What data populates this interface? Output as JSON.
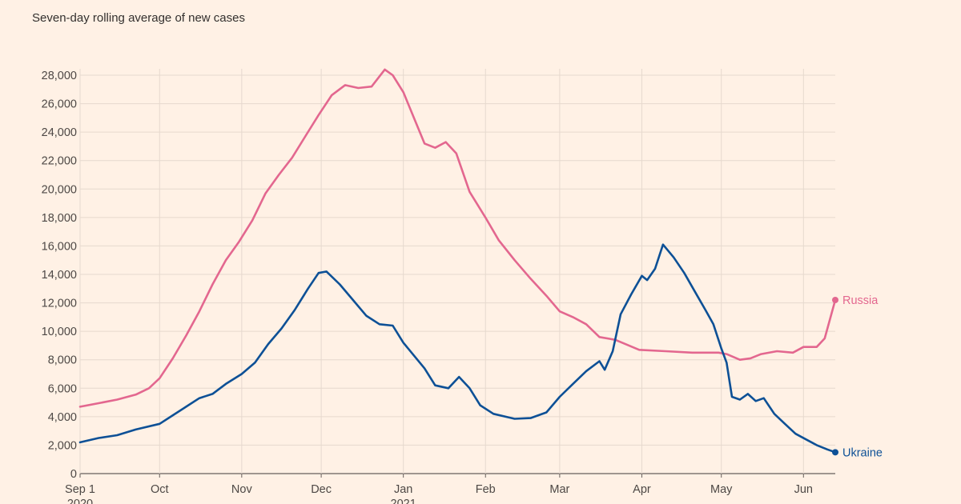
{
  "header": {
    "title": "",
    "subtitle": "Seven-day rolling average of new cases"
  },
  "colors": {
    "background": "#fff1e5",
    "grid": "#e6d9ce",
    "russia": "#e3678f",
    "ukraine": "#0d5096"
  },
  "chart_data": {
    "type": "line",
    "subtitle": "Seven-day rolling average of new cases",
    "x_axis": {
      "type": "date",
      "range": [
        "2020-09-01",
        "2021-06-13"
      ],
      "ticks": [
        {
          "date": "2020-09-01",
          "label": "Sep 1",
          "sublabel": "2020"
        },
        {
          "date": "2020-10-01",
          "label": "Oct"
        },
        {
          "date": "2020-11-01",
          "label": "Nov"
        },
        {
          "date": "2020-12-01",
          "label": "Dec"
        },
        {
          "date": "2021-01-01",
          "label": "Jan",
          "sublabel": "2021"
        },
        {
          "date": "2021-02-01",
          "label": "Feb"
        },
        {
          "date": "2021-03-01",
          "label": "Mar"
        },
        {
          "date": "2021-04-01",
          "label": "Apr"
        },
        {
          "date": "2021-05-01",
          "label": "May"
        },
        {
          "date": "2021-06-01",
          "label": "Jun"
        }
      ]
    },
    "y_axis": {
      "ylim": [
        0,
        28000
      ],
      "ticks": [
        0,
        2000,
        4000,
        6000,
        8000,
        10000,
        12000,
        14000,
        16000,
        18000,
        20000,
        22000,
        24000,
        26000,
        28000
      ],
      "tick_labels": [
        "0",
        "2,000",
        "4,000",
        "6,000",
        "8,000",
        "10,000",
        "12,000",
        "14,000",
        "16,000",
        "18,000",
        "20,000",
        "22,000",
        "24,000",
        "26,000",
        "28,000"
      ]
    },
    "grid": true,
    "series": [
      {
        "name": "Russia",
        "color": "#e3678f",
        "label_position": "end",
        "points": [
          [
            "2020-09-01",
            4700
          ],
          [
            "2020-09-08",
            4950
          ],
          [
            "2020-09-15",
            5200
          ],
          [
            "2020-09-22",
            5550
          ],
          [
            "2020-09-27",
            6000
          ],
          [
            "2020-10-01",
            6700
          ],
          [
            "2020-10-06",
            8100
          ],
          [
            "2020-10-11",
            9700
          ],
          [
            "2020-10-16",
            11400
          ],
          [
            "2020-10-21",
            13300
          ],
          [
            "2020-10-26",
            15000
          ],
          [
            "2020-10-31",
            16300
          ],
          [
            "2020-11-05",
            17800
          ],
          [
            "2020-11-10",
            19700
          ],
          [
            "2020-11-15",
            21000
          ],
          [
            "2020-11-20",
            22200
          ],
          [
            "2020-11-25",
            23700
          ],
          [
            "2020-11-30",
            25200
          ],
          [
            "2020-12-05",
            26600
          ],
          [
            "2020-12-10",
            27300
          ],
          [
            "2020-12-15",
            27100
          ],
          [
            "2020-12-20",
            27200
          ],
          [
            "2020-12-25",
            28400
          ],
          [
            "2020-12-28",
            28000
          ],
          [
            "2021-01-01",
            26800
          ],
          [
            "2021-01-05",
            25000
          ],
          [
            "2021-01-09",
            23200
          ],
          [
            "2021-01-13",
            22900
          ],
          [
            "2021-01-17",
            23300
          ],
          [
            "2021-01-21",
            22500
          ],
          [
            "2021-01-26",
            19800
          ],
          [
            "2021-02-01",
            18000
          ],
          [
            "2021-02-06",
            16400
          ],
          [
            "2021-02-12",
            15000
          ],
          [
            "2021-02-18",
            13700
          ],
          [
            "2021-02-24",
            12500
          ],
          [
            "2021-03-01",
            11400
          ],
          [
            "2021-03-06",
            11000
          ],
          [
            "2021-03-11",
            10500
          ],
          [
            "2021-03-16",
            9600
          ],
          [
            "2021-03-22",
            9400
          ],
          [
            "2021-03-31",
            8700
          ],
          [
            "2021-04-10",
            8600
          ],
          [
            "2021-04-20",
            8500
          ],
          [
            "2021-04-30",
            8500
          ],
          [
            "2021-05-03",
            8400
          ],
          [
            "2021-05-08",
            8000
          ],
          [
            "2021-05-12",
            8100
          ],
          [
            "2021-05-16",
            8400
          ],
          [
            "2021-05-22",
            8600
          ],
          [
            "2021-05-28",
            8500
          ],
          [
            "2021-06-01",
            8900
          ],
          [
            "2021-06-06",
            8900
          ],
          [
            "2021-06-09",
            9500
          ],
          [
            "2021-06-13",
            12200
          ]
        ]
      },
      {
        "name": "Ukraine",
        "color": "#0d5096",
        "label_position": "end",
        "points": [
          [
            "2020-09-01",
            2200
          ],
          [
            "2020-09-08",
            2500
          ],
          [
            "2020-09-15",
            2700
          ],
          [
            "2020-09-22",
            3100
          ],
          [
            "2020-10-01",
            3500
          ],
          [
            "2020-10-06",
            4100
          ],
          [
            "2020-10-11",
            4700
          ],
          [
            "2020-10-16",
            5300
          ],
          [
            "2020-10-21",
            5600
          ],
          [
            "2020-10-26",
            6300
          ],
          [
            "2020-11-01",
            7000
          ],
          [
            "2020-11-06",
            7800
          ],
          [
            "2020-11-11",
            9100
          ],
          [
            "2020-11-16",
            10200
          ],
          [
            "2020-11-21",
            11500
          ],
          [
            "2020-11-26",
            13000
          ],
          [
            "2020-11-30",
            14100
          ],
          [
            "2020-12-03",
            14200
          ],
          [
            "2020-12-08",
            13300
          ],
          [
            "2020-12-13",
            12200
          ],
          [
            "2020-12-18",
            11100
          ],
          [
            "2020-12-23",
            10500
          ],
          [
            "2020-12-28",
            10400
          ],
          [
            "2021-01-01",
            9200
          ],
          [
            "2021-01-05",
            8300
          ],
          [
            "2021-01-09",
            7400
          ],
          [
            "2021-01-13",
            6200
          ],
          [
            "2021-01-18",
            6000
          ],
          [
            "2021-01-22",
            6800
          ],
          [
            "2021-01-26",
            6000
          ],
          [
            "2021-01-30",
            4800
          ],
          [
            "2021-02-04",
            4200
          ],
          [
            "2021-02-12",
            3850
          ],
          [
            "2021-02-18",
            3900
          ],
          [
            "2021-02-24",
            4300
          ],
          [
            "2021-03-01",
            5400
          ],
          [
            "2021-03-06",
            6300
          ],
          [
            "2021-03-11",
            7200
          ],
          [
            "2021-03-16",
            7900
          ],
          [
            "2021-03-18",
            7300
          ],
          [
            "2021-03-21",
            8600
          ],
          [
            "2021-03-24",
            11200
          ],
          [
            "2021-03-28",
            12600
          ],
          [
            "2021-04-01",
            13900
          ],
          [
            "2021-04-03",
            13600
          ],
          [
            "2021-04-06",
            14400
          ],
          [
            "2021-04-09",
            16100
          ],
          [
            "2021-04-13",
            15200
          ],
          [
            "2021-04-17",
            14100
          ],
          [
            "2021-04-21",
            12800
          ],
          [
            "2021-04-25",
            11500
          ],
          [
            "2021-04-28",
            10500
          ],
          [
            "2021-05-01",
            8800
          ],
          [
            "2021-05-03",
            7800
          ],
          [
            "2021-05-05",
            5400
          ],
          [
            "2021-05-08",
            5200
          ],
          [
            "2021-05-11",
            5600
          ],
          [
            "2021-05-14",
            5100
          ],
          [
            "2021-05-17",
            5300
          ],
          [
            "2021-05-21",
            4200
          ],
          [
            "2021-05-25",
            3500
          ],
          [
            "2021-05-29",
            2800
          ],
          [
            "2021-06-02",
            2400
          ],
          [
            "2021-06-06",
            2000
          ],
          [
            "2021-06-10",
            1700
          ],
          [
            "2021-06-13",
            1500
          ]
        ]
      }
    ]
  }
}
